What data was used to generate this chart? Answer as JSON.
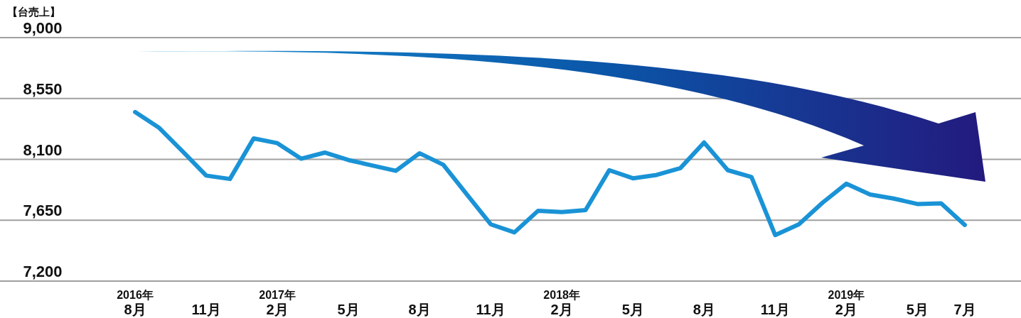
{
  "chart_data": {
    "type": "line",
    "ylabel": "【台売上】",
    "categories": [
      "2016年\n8月",
      null,
      null,
      "11月",
      null,
      null,
      "2017年\n2月",
      null,
      null,
      "5月",
      null,
      null,
      "8月",
      null,
      null,
      "11月",
      null,
      null,
      "2018年\n2月",
      null,
      null,
      "5月",
      null,
      null,
      "8月",
      null,
      null,
      "11月",
      null,
      null,
      "2019年\n2月",
      null,
      null,
      "5月",
      null,
      "7月"
    ],
    "series": [
      {
        "color": "#1a93d6",
        "values": [
          8450,
          8335,
          8160,
          7980,
          7955,
          8255,
          8220,
          8105,
          8150,
          8095,
          8055,
          8015,
          8145,
          8060,
          7840,
          7620,
          7560,
          7720,
          7710,
          7725,
          8020,
          7960,
          7985,
          8035,
          8225,
          8020,
          7970,
          7540,
          7620,
          7780,
          7920,
          7840,
          7810,
          7770,
          7775,
          7615
        ]
      }
    ],
    "ylim": [
      7200,
      9000
    ],
    "yticks": [
      {
        "value": 7200,
        "label": "7,200"
      },
      {
        "value": 7650,
        "label": "7,650"
      },
      {
        "value": 8100,
        "label": "8,100"
      },
      {
        "value": 8550,
        "label": "8,550"
      },
      {
        "value": 9000,
        "label": "9,000"
      }
    ],
    "grid": "y",
    "marker": "none",
    "line_style": "solid"
  }
}
